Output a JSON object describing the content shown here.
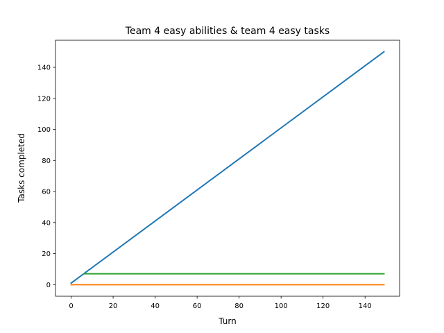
{
  "chart_data": {
    "type": "line",
    "title": "Team 4 easy abilities & team 4 easy tasks",
    "xlabel": "Turn",
    "ylabel": "Tasks completed",
    "xlim": [
      -7.45,
      156.45
    ],
    "ylim": [
      -7.45,
      157.45
    ],
    "xticks": [
      0,
      20,
      40,
      60,
      80,
      100,
      120,
      140
    ],
    "yticks": [
      0,
      20,
      40,
      60,
      80,
      100,
      120,
      140
    ],
    "grid": false,
    "series": [
      {
        "color": "#1f77b4",
        "x": [
          0,
          149
        ],
        "y": [
          1,
          150
        ]
      },
      {
        "color": "#ff7f0e",
        "x": [
          0,
          149
        ],
        "y": [
          0,
          0
        ]
      },
      {
        "color": "#2ca02c",
        "x": [
          6,
          149
        ],
        "y": [
          7,
          7
        ]
      }
    ]
  }
}
